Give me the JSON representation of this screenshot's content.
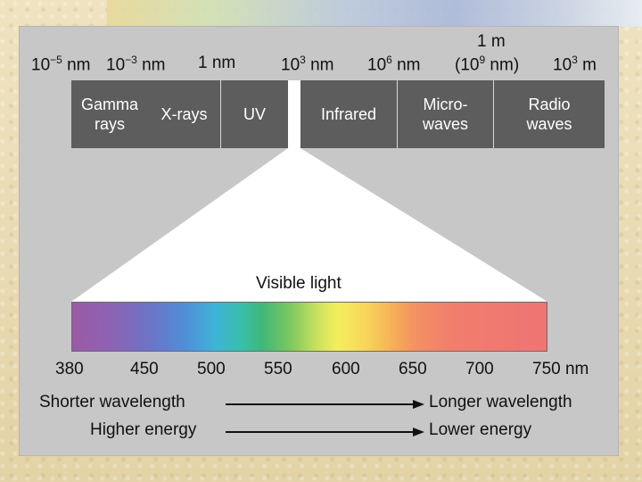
{
  "top_scale": {
    "l1": "10",
    "l1_exp": "−5",
    "l1_unit": " nm",
    "l2": "10",
    "l2_exp": "−3",
    "l2_unit": " nm",
    "l3": "1 nm",
    "l4": "10",
    "l4_exp": "3",
    "l4_unit": " nm",
    "l5": "10",
    "l5_exp": "6",
    "l5_unit": " nm",
    "l6_top": "1 m",
    "l6_pre": "(10",
    "l6_exp": "9",
    "l6_post": " nm)",
    "l7": "10",
    "l7_exp": "3",
    "l7_unit": " m"
  },
  "bands": [
    {
      "line1": "Gamma",
      "line2": "rays"
    },
    {
      "line1": "X-rays",
      "line2": ""
    },
    {
      "line1": "UV",
      "line2": ""
    },
    {
      "line1": "Infrared",
      "line2": ""
    },
    {
      "line1": "Micro-",
      "line2": "waves"
    },
    {
      "line1": "Radio",
      "line2": "waves"
    }
  ],
  "visible_label": "Visible light",
  "visible_ticks": [
    "380",
    "450",
    "500",
    "550",
    "600",
    "650",
    "700",
    "750 nm"
  ],
  "notes": {
    "shorter": "Shorter wavelength",
    "higher": "Higher energy",
    "longer": "Longer wavelength",
    "lower": "Lower energy"
  },
  "colors": {
    "band_fill": "#5d5d5d",
    "panel_fill": "#c7c7c7"
  }
}
